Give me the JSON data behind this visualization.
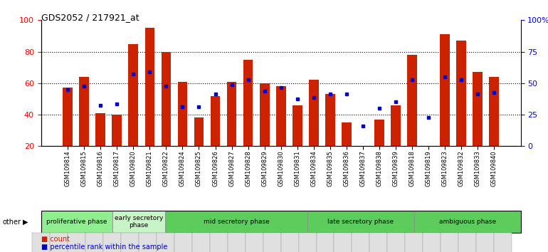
{
  "title": "GDS2052 / 217921_at",
  "samples": [
    "GSM109814",
    "GSM109815",
    "GSM109816",
    "GSM109817",
    "GSM109820",
    "GSM109821",
    "GSM109822",
    "GSM109824",
    "GSM109825",
    "GSM109826",
    "GSM109827",
    "GSM109828",
    "GSM109829",
    "GSM109830",
    "GSM109831",
    "GSM109834",
    "GSM109835",
    "GSM109836",
    "GSM109837",
    "GSM109838",
    "GSM109839",
    "GSM109818",
    "GSM109819",
    "GSM109823",
    "GSM109832",
    "GSM109833",
    "GSM109840"
  ],
  "red_values": [
    57,
    64,
    41,
    40,
    85,
    95,
    80,
    61,
    38,
    52,
    61,
    75,
    60,
    58,
    46,
    62,
    53,
    35,
    20,
    37,
    46,
    78,
    20,
    91,
    87,
    67,
    64
  ],
  "blue_values": [
    56,
    58,
    46,
    47,
    66,
    67,
    58,
    45,
    45,
    53,
    59,
    62,
    55,
    57,
    50,
    51,
    53,
    53,
    33,
    44,
    48,
    62,
    38,
    64,
    62,
    53,
    54
  ],
  "groups": [
    {
      "label": "proliferative phase",
      "start": 0,
      "end": 4,
      "color": "#90ee90"
    },
    {
      "label": "early secretory\nphase",
      "start": 4,
      "end": 7,
      "color": "#c8f5c8"
    },
    {
      "label": "mid secretory phase",
      "start": 7,
      "end": 15,
      "color": "#5dcc5d"
    },
    {
      "label": "late secretory phase",
      "start": 15,
      "end": 21,
      "color": "#5dcc5d"
    },
    {
      "label": "ambiguous phase",
      "start": 21,
      "end": 27,
      "color": "#5dcc5d"
    }
  ],
  "other_label": "other",
  "red_color": "#cc2200",
  "blue_color": "#0000cc",
  "ylim_left": [
    20,
    100
  ],
  "yticks_left": [
    20,
    40,
    60,
    80,
    100
  ],
  "yticks_right": [
    0,
    25,
    50,
    75,
    100
  ],
  "ytick_labels_right": [
    "0",
    "25",
    "50",
    "75",
    "100%"
  ],
  "bar_width": 0.6
}
